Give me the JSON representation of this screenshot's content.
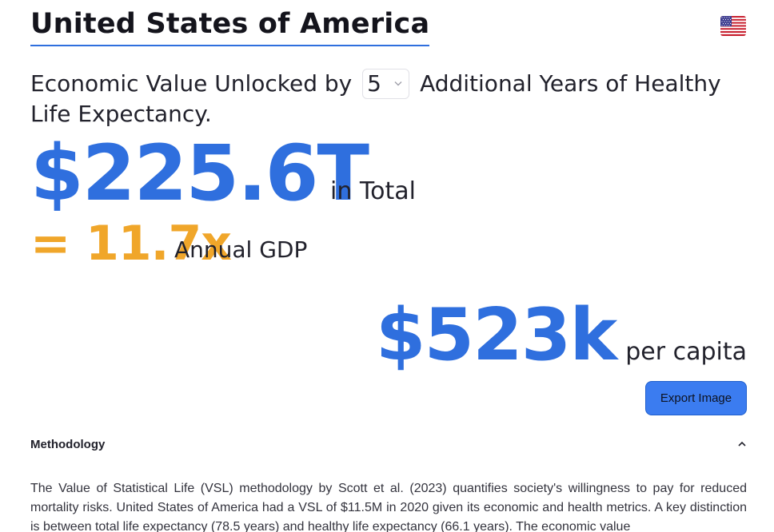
{
  "country": {
    "name": "United States of America",
    "flag_icon": "us-flag-icon"
  },
  "headline": {
    "prefix": "Economic Value Unlocked by",
    "years_selected": "5",
    "suffix": "Additional Years of Healthy Life Expectancy."
  },
  "total": {
    "value": "$225.6T",
    "label": "in Total"
  },
  "gdp": {
    "value": "= 11.7x",
    "label": "Annual GDP"
  },
  "per_capita": {
    "value": "$523k",
    "label": "per capita"
  },
  "export_button": {
    "label": "Export Image"
  },
  "methodology": {
    "title": "Methodology",
    "expanded": true,
    "text": "The Value of Statistical Life (VSL) methodology by Scott et al. (2023) quantifies society's willingness to pay for reduced mortality risks. United States of America had a VSL of $11.5M in 2020 given its economic and health metrics. A key distinction is between total life expectancy (78.5 years) and healthy life expectancy (66.1 years). The economic value"
  },
  "colors": {
    "accent_blue": "#2f6fde",
    "accent_orange": "#f0a62a",
    "button_blue": "#3b7cf0"
  }
}
